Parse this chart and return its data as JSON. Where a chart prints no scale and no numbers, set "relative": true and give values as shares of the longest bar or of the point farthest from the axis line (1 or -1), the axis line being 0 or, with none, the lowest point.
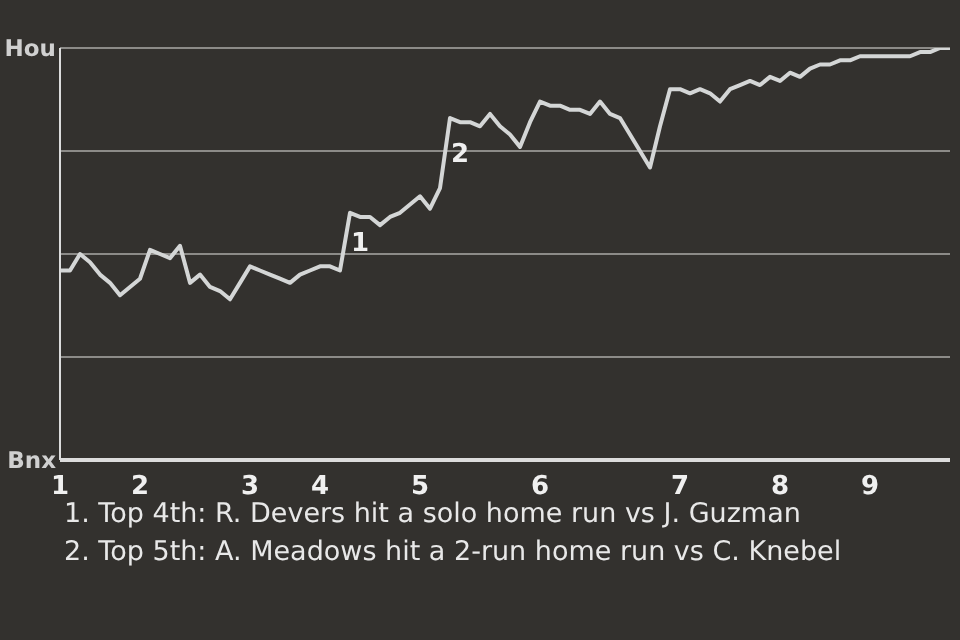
{
  "chart_data": {
    "type": "line",
    "relative": true,
    "tick_labels": "x",
    "categories": [
      "1",
      null,
      null,
      null,
      null,
      null,
      null,
      null,
      "2",
      null,
      null,
      null,
      null,
      null,
      null,
      null,
      null,
      null,
      null,
      "3",
      null,
      null,
      null,
      null,
      null,
      null,
      "4",
      null,
      null,
      null,
      null,
      null,
      null,
      null,
      null,
      null,
      "5",
      null,
      null,
      null,
      null,
      null,
      null,
      null,
      null,
      null,
      null,
      null,
      "6",
      null,
      null,
      null,
      null,
      null,
      null,
      null,
      null,
      null,
      null,
      null,
      null,
      null,
      "7",
      null,
      null,
      null,
      null,
      null,
      null,
      null,
      null,
      null,
      "8",
      null,
      null,
      null,
      null,
      null,
      null,
      null,
      null,
      "9",
      null,
      null,
      null,
      null,
      null,
      null,
      null,
      null
    ],
    "series": [
      {
        "color": "#d4d6d6",
        "values": [
          0.46,
          0.46,
          0.5,
          0.48,
          0.45,
          0.43,
          0.4,
          0.42,
          0.44,
          0.51,
          0.5,
          0.49,
          0.52,
          0.43,
          0.45,
          0.42,
          0.41,
          0.39,
          0.43,
          0.47,
          0.46,
          0.45,
          0.44,
          0.43,
          0.45,
          0.46,
          0.47,
          0.47,
          0.46,
          0.6,
          0.59,
          0.59,
          0.57,
          0.59,
          0.6,
          0.62,
          0.64,
          0.61,
          0.66,
          0.83,
          0.82,
          0.82,
          0.81,
          0.84,
          0.81,
          0.79,
          0.76,
          0.82,
          0.87,
          0.86,
          0.86,
          0.85,
          0.85,
          0.84,
          0.87,
          0.84,
          0.83,
          0.79,
          0.75,
          0.71,
          0.81,
          0.9,
          0.9,
          0.89,
          0.9,
          0.89,
          0.87,
          0.9,
          0.91,
          0.92,
          0.91,
          0.93,
          0.92,
          0.94,
          0.93,
          0.95,
          0.96,
          0.96,
          0.97,
          0.97,
          0.98,
          0.98,
          0.98,
          0.98,
          0.98,
          0.98,
          0.99,
          0.99,
          1,
          1
        ],
        "name": null
      }
    ],
    "grid": "y",
    "legend": false,
    "marker": "none",
    "line_style": "solid",
    "annotations": [
      "1",
      "2",
      "Hou",
      "Bnx",
      "1. Top 4th: R. Devers hit a solo home run vs J. Guzman",
      "2. Top 5th: A. Meadows hit a 2-run home run vs C. Knebel"
    ]
  }
}
